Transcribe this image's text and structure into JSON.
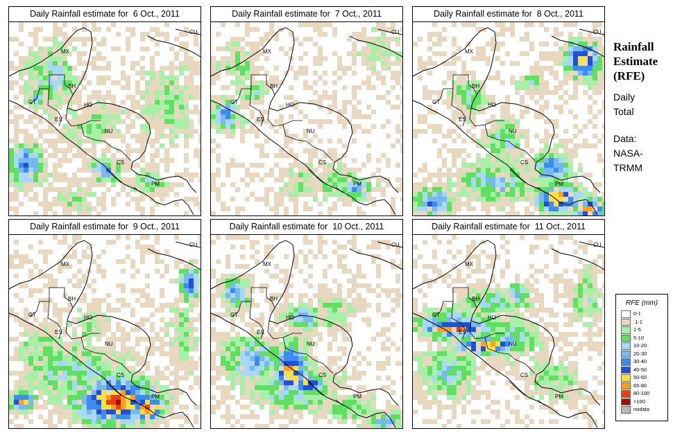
{
  "panels": [
    {
      "title": "Daily Rainfall estimate for  6 Oct., 2011"
    },
    {
      "title": "Daily Rainfall estimate for  7 Oct., 2011"
    },
    {
      "title": "Daily Rainfall estimate for  8 Oct., 2011"
    },
    {
      "title": "Daily Rainfall estimate for  9 Oct., 2011"
    },
    {
      "title": "Daily Rainfall estimate for  10 Oct., 2011"
    },
    {
      "title": "Daily Rainfall estimate for  11 Oct., 2011"
    }
  ],
  "country_labels": [
    "MX",
    "BH",
    "GT",
    "HO",
    "ES",
    "NU",
    "CS",
    "PM",
    "CU"
  ],
  "side": {
    "title_line1": "Rainfall",
    "title_line2": "Estimate",
    "title_line3": "(RFE)",
    "daily": "Daily",
    "total": "Total",
    "data_label": "Data:",
    "source1": "NASA-",
    "source2": "TRMM"
  },
  "legend": {
    "title": "RFE (mm)",
    "items": [
      {
        "label": "0-1",
        "color": "#ffffff"
      },
      {
        "label": ".1-1",
        "color": "#e8d8c0"
      },
      {
        "label": "1-5",
        "color": "#a8f0a8"
      },
      {
        "label": "5-10",
        "color": "#60e060"
      },
      {
        "label": "10-20",
        "color": "#a8d8f8"
      },
      {
        "label": "20-30",
        "color": "#78b8f0"
      },
      {
        "label": "30-40",
        "color": "#3c8cf0"
      },
      {
        "label": "40-50",
        "color": "#2050d8"
      },
      {
        "label": "50-65",
        "color": "#f8e040"
      },
      {
        "label": "65-80",
        "color": "#f8a020"
      },
      {
        "label": "80-100",
        "color": "#e84010"
      },
      {
        "label": ">100",
        "color": "#a01010"
      },
      {
        "label": "nodata",
        "color": "#b8b8b8"
      }
    ]
  }
}
